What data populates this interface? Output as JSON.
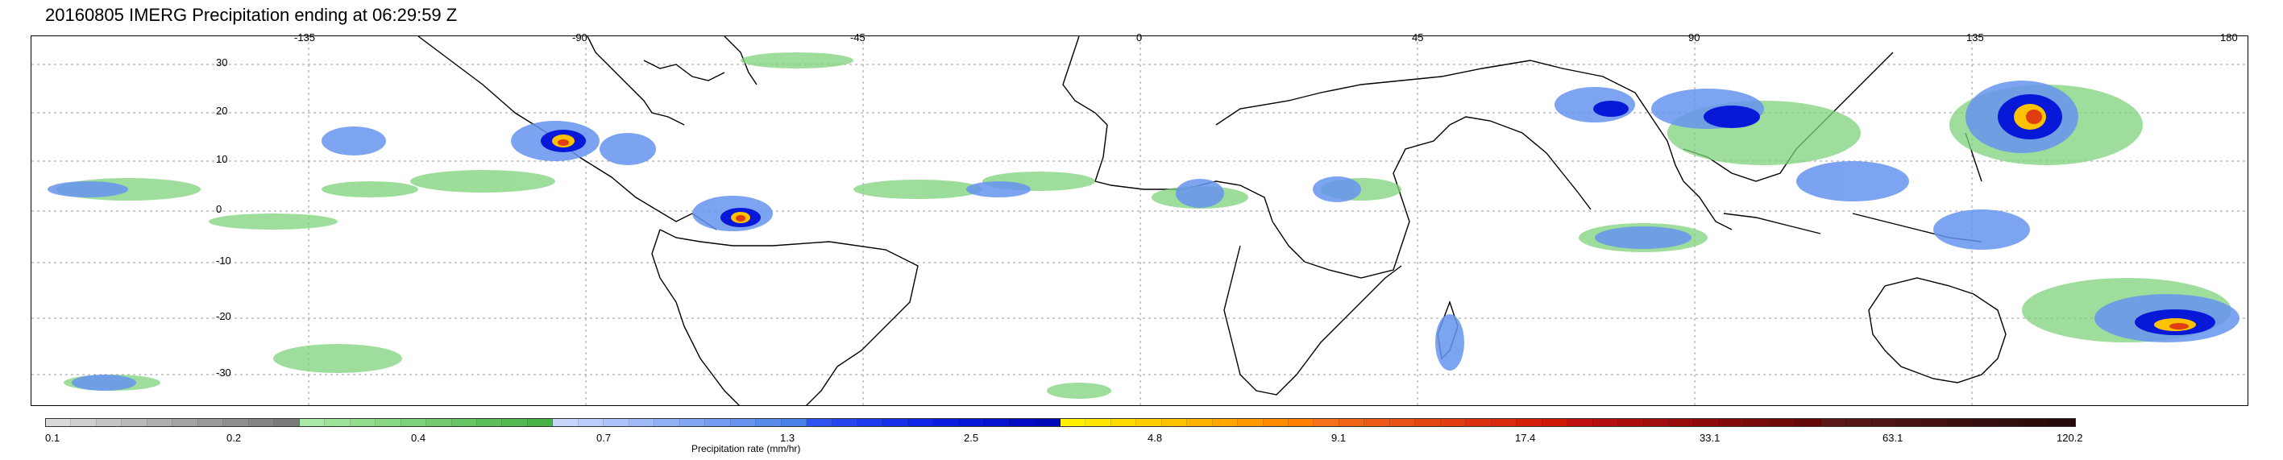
{
  "title": "20160805 IMERG Precipitation ending at 06:29:59 Z",
  "map": {
    "type": "precipitation map",
    "lat_labels": [
      "30",
      "20",
      "10",
      "0",
      "-10",
      "-20",
      "-30"
    ],
    "lon_labels": [
      "-135",
      "-90",
      "-45",
      "0",
      "45",
      "90",
      "135",
      "180"
    ],
    "gridlines": true,
    "coastline_color": "#000000"
  },
  "colorbar": {
    "title": "Precipitation rate (mm/hr)",
    "tick_labels": [
      "0.1",
      "0.2",
      "0.4",
      "0.7",
      "1.3",
      "2.5",
      "4.8",
      "9.1",
      "17.4",
      "33.1",
      "63.1",
      "120.2"
    ],
    "segments": [
      "#d9d9d9",
      "#cfcfcf",
      "#c4c4c4",
      "#b9b9b9",
      "#afafaf",
      "#a4a4a4",
      "#9a9a9a",
      "#8f8f8f",
      "#858585",
      "#7a7a7a",
      "#a9e8a5",
      "#9ee39a",
      "#93dd8f",
      "#88d884",
      "#7dd279",
      "#72cc6e",
      "#67c664",
      "#5cc05a",
      "#51b950",
      "#47b247",
      "#c8d6fb",
      "#bacdfa",
      "#acc3f9",
      "#9ebaf8",
      "#90b0f6",
      "#82a7f4",
      "#749df2",
      "#6694ef",
      "#588aec",
      "#4a81e9",
      "#2f52f2",
      "#2746f0",
      "#1f3bee",
      "#1730ea",
      "#1026e6",
      "#0b1ee0",
      "#0818d8",
      "#0512cf",
      "#030cc4",
      "#0207b8",
      "#fff200",
      "#ffe600",
      "#ffda00",
      "#ffce00",
      "#ffc200",
      "#ffb400",
      "#ffa600",
      "#ff9900",
      "#ff8c00",
      "#ff7f00",
      "#f4701a",
      "#f06518",
      "#ec5a16",
      "#e85014",
      "#e44612",
      "#e03d10",
      "#dc330e",
      "#d82a0c",
      "#d4220a",
      "#d01a08",
      "#c01010",
      "#b60f0f",
      "#ac0e0e",
      "#a20d0d",
      "#980c0c",
      "#8e0b0b",
      "#840a0a",
      "#7a0909",
      "#700808",
      "#660707",
      "#5c1818",
      "#561616",
      "#501414",
      "#4a1212",
      "#441010",
      "#3e0f0f",
      "#380d0d",
      "#320c0c",
      "#2c0a0a",
      "#260909"
    ]
  }
}
